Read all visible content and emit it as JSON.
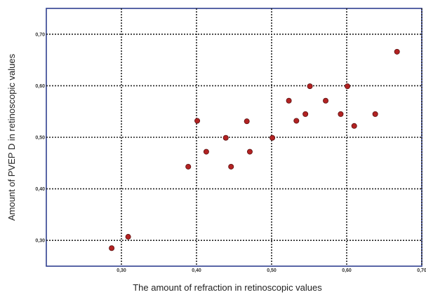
{
  "chart_data": {
    "type": "scatter",
    "title": "",
    "xlabel": "The amount of refraction in retinoscopic values",
    "ylabel": "Amount of PVEP D in retinoscopic values",
    "xlim": [
      0.2,
      0.7
    ],
    "ylim": [
      0.25,
      0.75
    ],
    "x_ticks": [
      0.3,
      0.4,
      0.5,
      0.6,
      0.7
    ],
    "x_tick_labels": [
      "0,30",
      "0,40",
      "0,50",
      "0,60",
      "0,70"
    ],
    "y_ticks": [
      0.3,
      0.4,
      0.5,
      0.6,
      0.7
    ],
    "y_tick_labels": [
      "0,30",
      "0,40",
      "0,50",
      "0,60",
      "0,70"
    ],
    "grid": true,
    "grid_style": "dotted",
    "legend": "none",
    "marker_color": "#b22222",
    "marker_edge_color": "#5a1010",
    "points": [
      {
        "x": 0.287,
        "y": 0.285
      },
      {
        "x": 0.309,
        "y": 0.307
      },
      {
        "x": 0.389,
        "y": 0.443
      },
      {
        "x": 0.401,
        "y": 0.532
      },
      {
        "x": 0.413,
        "y": 0.472
      },
      {
        "x": 0.439,
        "y": 0.499
      },
      {
        "x": 0.446,
        "y": 0.443
      },
      {
        "x": 0.467,
        "y": 0.531
      },
      {
        "x": 0.471,
        "y": 0.472
      },
      {
        "x": 0.501,
        "y": 0.499
      },
      {
        "x": 0.523,
        "y": 0.571
      },
      {
        "x": 0.533,
        "y": 0.532
      },
      {
        "x": 0.545,
        "y": 0.545
      },
      {
        "x": 0.551,
        "y": 0.599
      },
      {
        "x": 0.572,
        "y": 0.571
      },
      {
        "x": 0.592,
        "y": 0.545
      },
      {
        "x": 0.601,
        "y": 0.599
      },
      {
        "x": 0.61,
        "y": 0.522
      },
      {
        "x": 0.638,
        "y": 0.545
      },
      {
        "x": 0.667,
        "y": 0.666
      }
    ]
  }
}
